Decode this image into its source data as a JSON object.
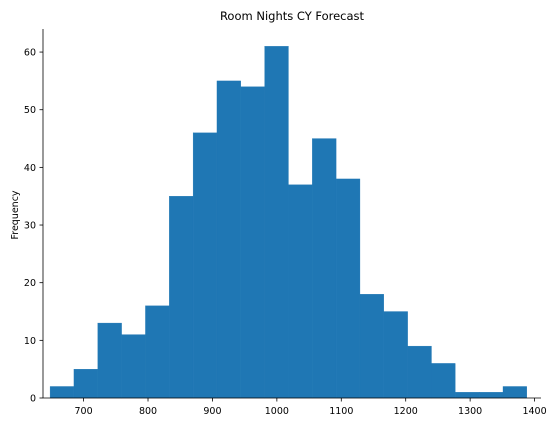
{
  "chart_data": {
    "type": "bar",
    "subtype": "histogram",
    "title": "Room Nights CY Forecast",
    "xlabel": "",
    "ylabel": "Frequency",
    "xlim": [
      637,
      1410
    ],
    "ylim": [
      0,
      64
    ],
    "bin_edges": [
      648,
      685,
      722,
      759,
      796,
      833,
      870,
      907,
      944,
      981,
      1018,
      1055,
      1092,
      1129,
      1166,
      1203,
      1240,
      1277,
      1314,
      1351,
      1388
    ],
    "values": [
      2,
      5,
      13,
      11,
      16,
      35,
      46,
      55,
      54,
      61,
      37,
      45,
      38,
      18,
      15,
      9,
      6,
      1,
      1,
      2
    ],
    "x_ticks": [
      700,
      800,
      900,
      1000,
      1100,
      1200,
      1300,
      1400
    ],
    "y_ticks": [
      0,
      10,
      20,
      30,
      40,
      50,
      60
    ],
    "bar_color": "#1f77b4",
    "grid": false,
    "spines": "left-bottom"
  }
}
